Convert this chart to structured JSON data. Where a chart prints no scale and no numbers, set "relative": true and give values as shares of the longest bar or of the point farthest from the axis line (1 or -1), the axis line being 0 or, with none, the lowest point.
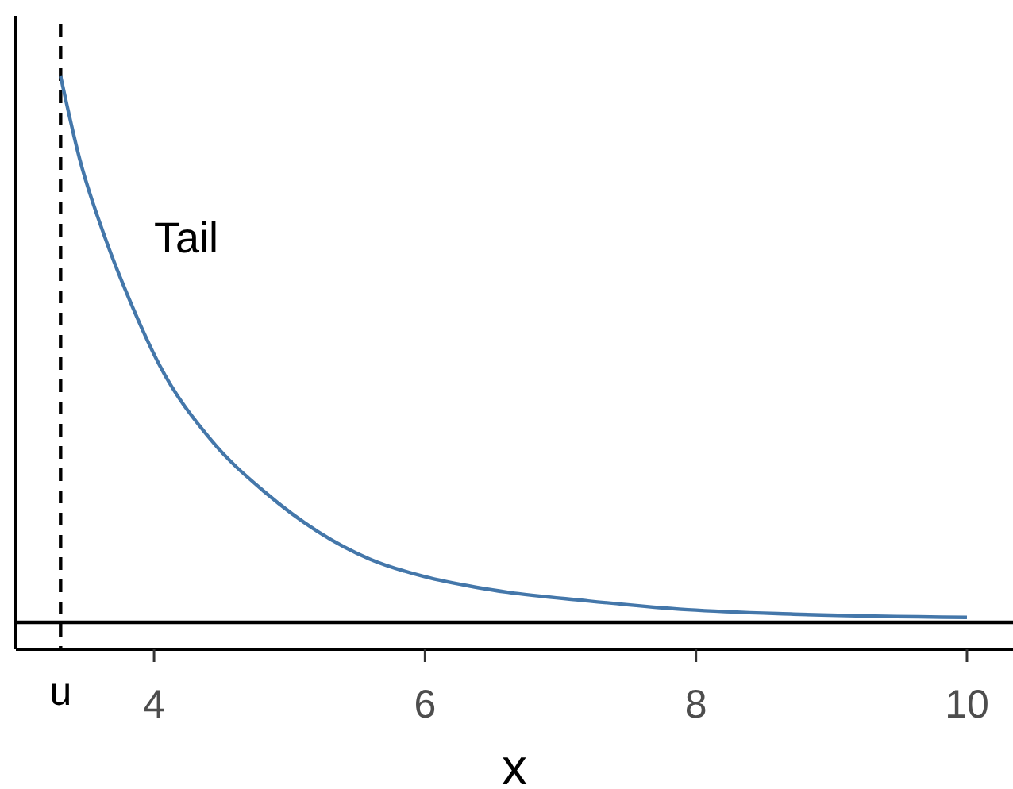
{
  "chart_data": {
    "type": "line",
    "relative": true,
    "xlabel": "x",
    "xlim": [
      2.98,
      10.34
    ],
    "xticks": [
      4,
      6,
      8,
      10
    ],
    "x": [
      3.31,
      3.45,
      3.64,
      3.84,
      4.04,
      4.42,
      4.82,
      5.21,
      5.59,
      5.99,
      6.38,
      6.61,
      7.17,
      7.94,
      8.72,
      10
    ],
    "series": [
      {
        "color": "#4477aa",
        "values": [
          1,
          0.849,
          0.703,
          0.578,
          0.471,
          0.334,
          0.238,
          0.166,
          0.116,
          0.084,
          0.064,
          0.055,
          0.04,
          0.023,
          0.015,
          0.009
        ]
      }
    ],
    "ref_lines": [
      {
        "axis": "x",
        "value": 3.31,
        "label": "u",
        "line_style": "dashed",
        "color": "#000000"
      },
      {
        "axis": "y",
        "value": 0,
        "color": "#000000",
        "line_style": "solid"
      }
    ],
    "annotations": [
      "Tail"
    ]
  }
}
